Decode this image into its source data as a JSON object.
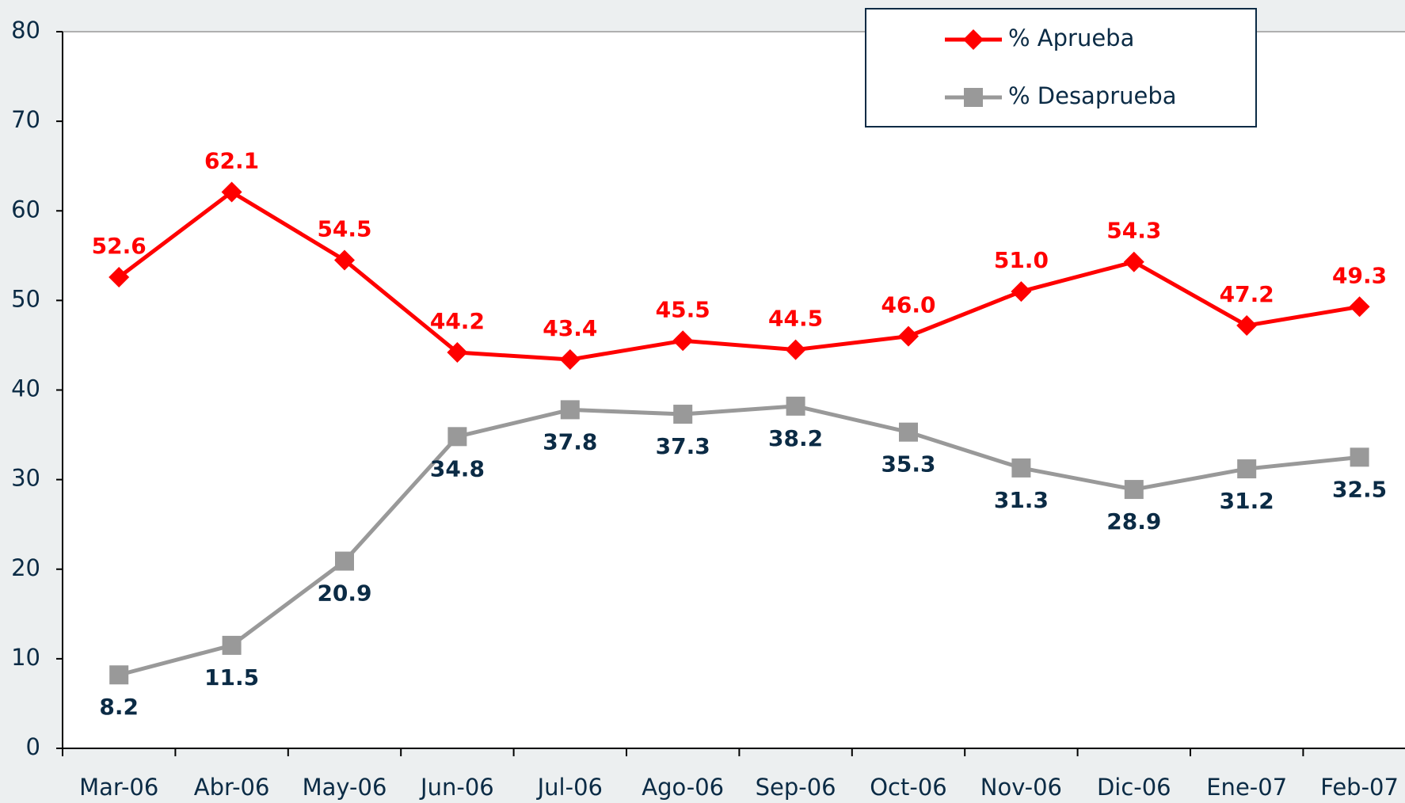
{
  "chart_data": {
    "type": "line",
    "categories": [
      "Mar-06",
      "Abr-06",
      "May-06",
      "Jun-06",
      "Jul-06",
      "Ago-06",
      "Sep-06",
      "Oct-06",
      "Nov-06",
      "Dic-06",
      "Ene-07",
      "Feb-07"
    ],
    "series": [
      {
        "name": "% Aprueba",
        "color": "#ff0000",
        "marker": "diamond",
        "values": [
          52.6,
          62.1,
          54.5,
          44.2,
          43.4,
          45.5,
          44.5,
          46.0,
          51.0,
          54.3,
          47.2,
          49.3
        ],
        "value_labels": [
          "52.6",
          "62.1",
          "54.5",
          "44.2",
          "43.4",
          "45.5",
          "44.5",
          "46.0",
          "51.0",
          "54.3",
          "47.2",
          "49.3"
        ]
      },
      {
        "name": "% Desaprueba",
        "color": "#999999",
        "marker": "square",
        "values": [
          8.2,
          11.5,
          20.9,
          34.8,
          37.8,
          37.3,
          38.2,
          35.3,
          31.3,
          28.9,
          31.2,
          32.5
        ],
        "value_labels": [
          "8.2",
          "11.5",
          "20.9",
          "34.8",
          "37.8",
          "37.3",
          "38.2",
          "35.3",
          "31.3",
          "28.9",
          "31.2",
          "32.5"
        ]
      }
    ],
    "ylim": [
      0,
      80
    ],
    "yticks": [
      0,
      10,
      20,
      30,
      40,
      50,
      60,
      70,
      80
    ],
    "grid": false,
    "legend": "top-right"
  }
}
